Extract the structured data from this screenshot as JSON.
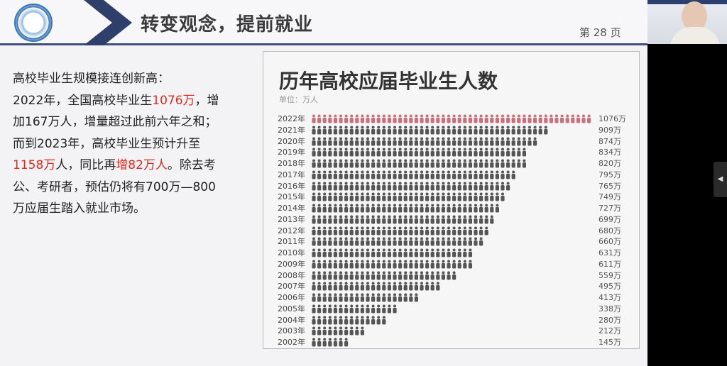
{
  "header": {
    "title": "转变观念，提前就业",
    "page_label": "第 28 页"
  },
  "body": {
    "l1": "高校毕业生规模接连创新高：",
    "l2a": "2022年，全国高校毕业生",
    "l2b": "1076万",
    "l2c": "，增",
    "l3": "加167万人，增量超过此前六年之和；",
    "l4": "而到2023年，高校毕业生预计升至",
    "l5a": "1158万",
    "l5b": "人，同比再",
    "l5c": "增82万人",
    "l5d": "。除去考",
    "l6": "公、考研者，预估仍将有700万—800",
    "l7": "万应届生踏入就业市场。"
  },
  "colors": {
    "accent_red": "#e02a1f",
    "navy": "#3d4f7c",
    "icon_gray": "#555555",
    "icon_highlight": "#c9707a"
  },
  "chart_data": {
    "type": "bar",
    "style": "pictogram",
    "title": "历年高校应届毕业生人数",
    "unit": "单位：万人",
    "categories": [
      "2022年",
      "2021年",
      "2020年",
      "2019年",
      "2018年",
      "2017年",
      "2016年",
      "2015年",
      "2014年",
      "2013年",
      "2012年",
      "2011年",
      "2010年",
      "2009年",
      "2008年",
      "2007年",
      "2006年",
      "2005年",
      "2004年",
      "2003年",
      "2002年"
    ],
    "values": [
      1076,
      909,
      874,
      834,
      820,
      795,
      765,
      749,
      727,
      699,
      680,
      660,
      631,
      611,
      559,
      495,
      413,
      338,
      280,
      212,
      145
    ],
    "value_labels": [
      "1076万",
      "909万",
      "874万",
      "834万",
      "820万",
      "795万",
      "765万",
      "749万",
      "727万",
      "699万",
      "680万",
      "660万",
      "631万",
      "611万",
      "559万",
      "495万",
      "413万",
      "338万",
      "280万",
      "212万",
      "145万"
    ],
    "highlight": "2022年"
  },
  "side_tab": {
    "icon": "chevron-left-icon",
    "label": "◀"
  }
}
